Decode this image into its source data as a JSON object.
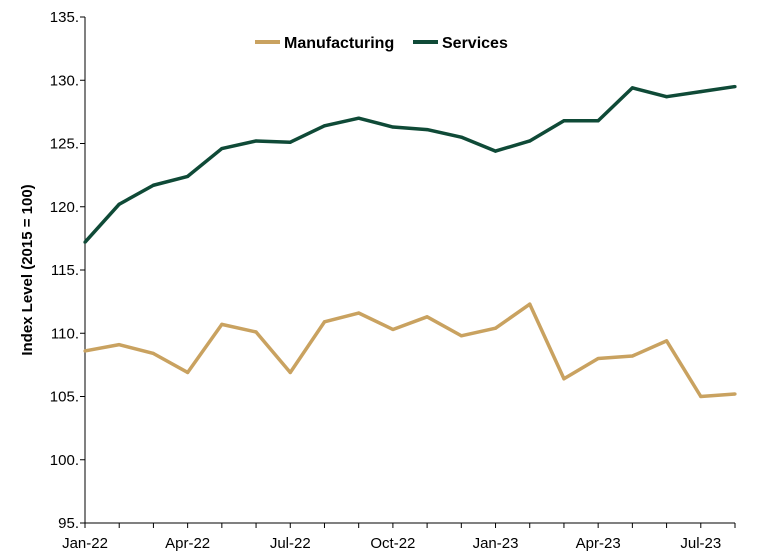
{
  "chart_data": {
    "type": "line",
    "title": "",
    "xlabel": "",
    "ylabel": "Index Level (2015 = 100)",
    "ylim": [
      95,
      135
    ],
    "yticks": [
      "95.",
      "100.",
      "105.",
      "110.",
      "115.",
      "120.",
      "125.",
      "130.",
      "135."
    ],
    "yticks_values": [
      95,
      100,
      105,
      110,
      115,
      120,
      125,
      130,
      135
    ],
    "x": [
      "Jan-22",
      "Feb-22",
      "Mar-22",
      "Apr-22",
      "May-22",
      "Jun-22",
      "Jul-22",
      "Aug-22",
      "Sep-22",
      "Oct-22",
      "Nov-22",
      "Dec-22",
      "Jan-23",
      "Feb-23",
      "Mar-23",
      "Apr-23",
      "May-23",
      "Jun-23",
      "Jul-23",
      "Aug-23"
    ],
    "xtick_labels": [
      {
        "label": "Jan-22",
        "index": 0
      },
      {
        "label": "Apr-22",
        "index": 3
      },
      {
        "label": "Jul-22",
        "index": 6
      },
      {
        "label": "Oct-22",
        "index": 9
      },
      {
        "label": "Jan-23",
        "index": 12
      },
      {
        "label": "Apr-23",
        "index": 15
      },
      {
        "label": "Jul-23",
        "index": 18
      }
    ],
    "series": [
      {
        "name": "Manufacturing",
        "color": "#C9A260",
        "values": [
          108.6,
          109.1,
          108.4,
          106.9,
          110.7,
          110.1,
          106.9,
          110.9,
          111.6,
          110.3,
          111.3,
          109.8,
          110.4,
          112.3,
          106.4,
          108.0,
          108.2,
          109.4,
          105.0,
          105.2
        ]
      },
      {
        "name": "Services",
        "color": "#0F4A37",
        "values": [
          117.2,
          120.2,
          121.7,
          122.4,
          124.6,
          125.2,
          125.1,
          126.4,
          127.0,
          126.3,
          126.1,
          125.5,
          124.4,
          125.2,
          126.8,
          126.8,
          129.4,
          128.7,
          129.1,
          129.5
        ]
      }
    ],
    "grid": false,
    "legend": "top-center"
  }
}
